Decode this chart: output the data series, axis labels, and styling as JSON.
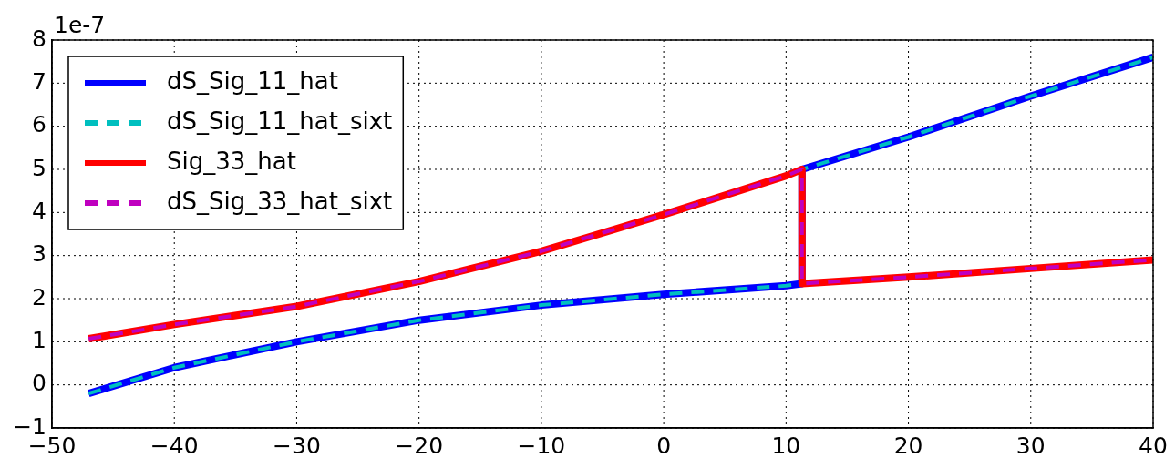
{
  "chart_data": {
    "type": "line",
    "annotations": [
      "1e-7"
    ],
    "xlim": [
      -50,
      40
    ],
    "xticks": [
      -50,
      -40,
      -30,
      -20,
      -10,
      0,
      10,
      20,
      30,
      40
    ],
    "ylim": [
      -1,
      8
    ],
    "yticks": [
      -1,
      0,
      1,
      2,
      3,
      4,
      5,
      6,
      7,
      8
    ],
    "grid": true,
    "legend": "top left",
    "marker": "none",
    "series": [
      {
        "name": "dS_Sig_11_hat",
        "color": "#0000ff",
        "line_style": "solid",
        "x": [
          -47,
          -40,
          -30,
          -20,
          -10,
          0,
          10,
          11.3,
          11.3,
          20,
          30,
          40
        ],
        "values": [
          -0.2,
          0.4,
          1.0,
          1.5,
          1.85,
          2.1,
          2.3,
          2.35,
          5.0,
          5.75,
          6.7,
          7.6
        ]
      },
      {
        "name": "dS_Sig_11_hat_sixt",
        "color": "#00bfbf",
        "line_style": "dashed",
        "x": [
          -47,
          -40,
          -30,
          -20,
          -10,
          0,
          10,
          11.3,
          11.3,
          20,
          30,
          40
        ],
        "values": [
          -0.2,
          0.4,
          1.0,
          1.5,
          1.85,
          2.1,
          2.3,
          2.35,
          5.0,
          5.75,
          6.7,
          7.6
        ]
      },
      {
        "name": "Sig_33_hat",
        "color": "#ff0000",
        "line_style": "solid",
        "x": [
          -47,
          -40,
          -30,
          -20,
          -10,
          0,
          10,
          11.3,
          11.3,
          20,
          30,
          40
        ],
        "values": [
          1.07,
          1.4,
          1.82,
          2.4,
          3.1,
          3.95,
          4.85,
          5.0,
          2.35,
          2.5,
          2.7,
          2.9
        ]
      },
      {
        "name": "dS_Sig_33_hat_sixt",
        "color": "#bf00bf",
        "line_style": "dashed",
        "x": [
          -47,
          -40,
          -30,
          -20,
          -10,
          0,
          10,
          11.3,
          11.3,
          20,
          30,
          40
        ],
        "values": [
          1.07,
          1.4,
          1.82,
          2.4,
          3.1,
          3.95,
          4.85,
          5.0,
          2.35,
          2.5,
          2.7,
          2.9
        ]
      }
    ]
  }
}
